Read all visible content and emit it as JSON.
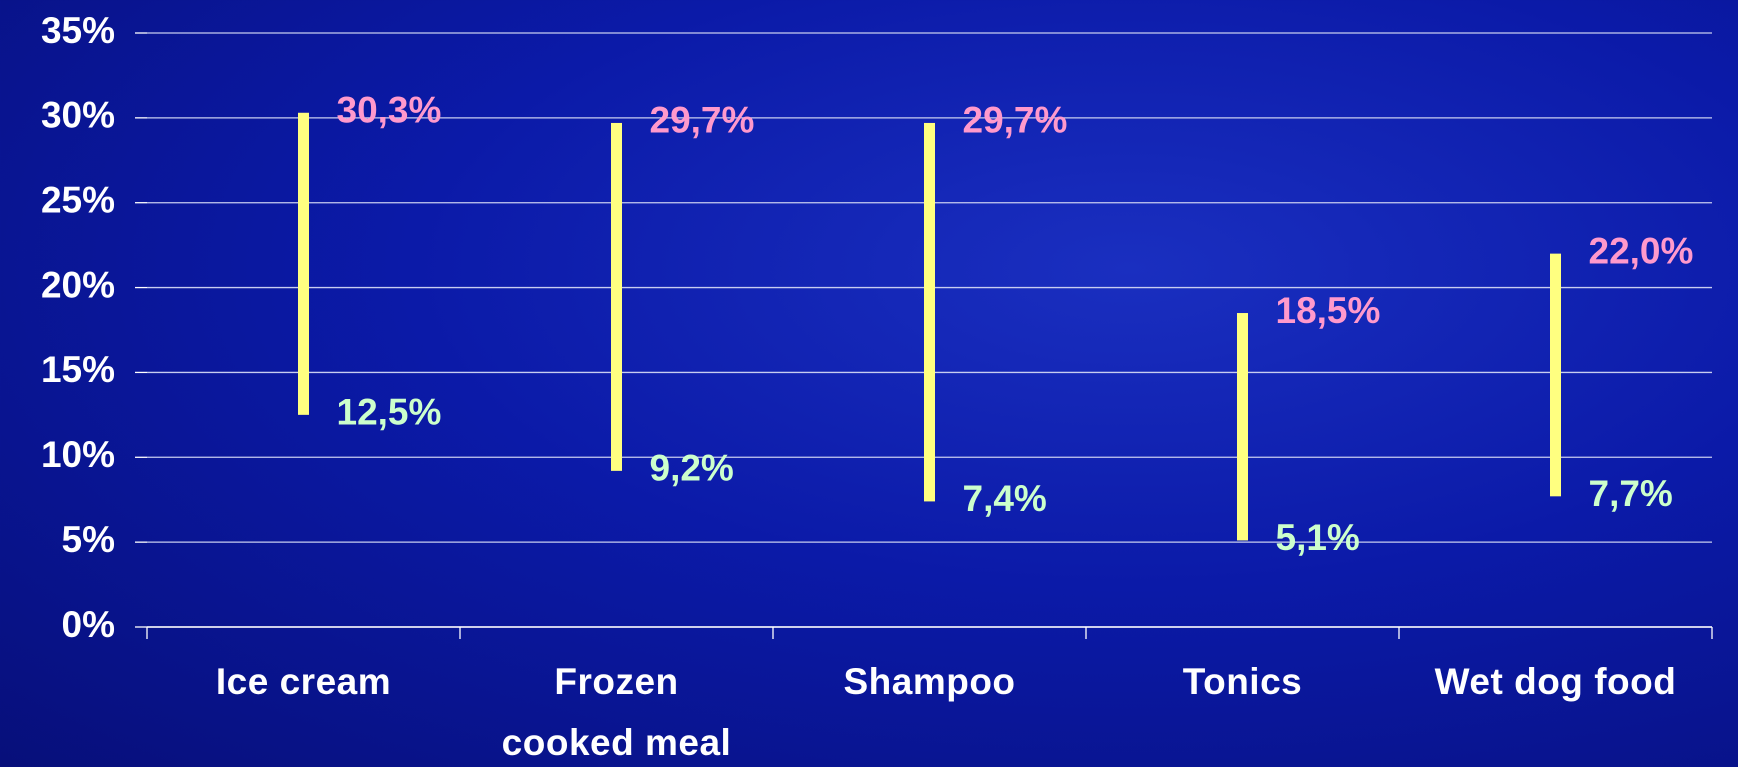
{
  "chart_data": {
    "type": "range",
    "categories": [
      "Ice cream",
      "Frozen\ncooked meal",
      "Shampoo",
      "Tonics",
      "Wet dog food"
    ],
    "series": [
      {
        "color": "#ff99cc",
        "values": [
          30.3,
          29.7,
          29.7,
          18.5,
          22.0
        ],
        "value_labels": [
          "30,3%",
          "29,7%",
          "29,7%",
          "18,5%",
          "22,0%"
        ]
      },
      {
        "color": "#ccffcc",
        "values": [
          12.5,
          9.2,
          7.4,
          5.1,
          7.7
        ],
        "value_labels": [
          "12,5%",
          "9,2%",
          "7,4%",
          "5,1%",
          "7,7%"
        ]
      }
    ],
    "bar_color": "#ffff80",
    "ylim": [
      0,
      35
    ],
    "yticks": [
      {
        "value": 0,
        "label": "0%"
      },
      {
        "value": 5,
        "label": "5%"
      },
      {
        "value": 10,
        "label": "10%"
      },
      {
        "value": 15,
        "label": "15%"
      },
      {
        "value": 20,
        "label": "20%"
      },
      {
        "value": 25,
        "label": "25%"
      },
      {
        "value": 30,
        "label": "30%"
      },
      {
        "value": 35,
        "label": "35%"
      }
    ],
    "grid": true
  }
}
